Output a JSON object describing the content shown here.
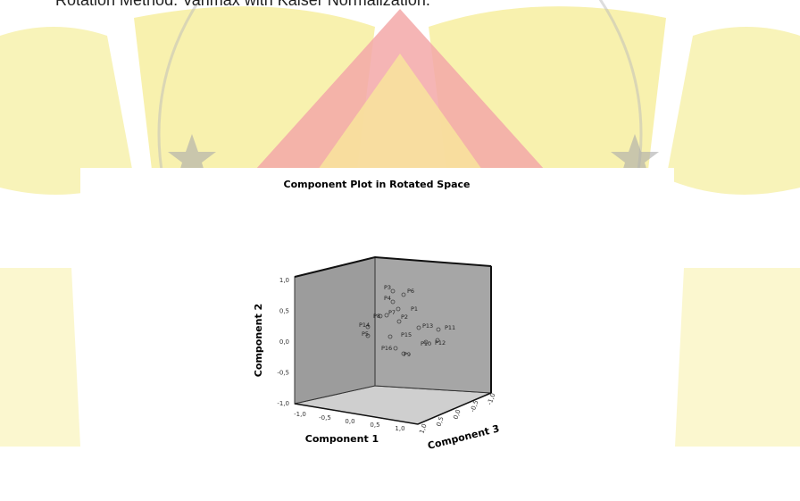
{
  "header": {
    "text": "Rotation Method: Varimax with Kaiser Normalization."
  },
  "figure": {
    "title": "Component Plot in Rotated Space",
    "axes": {
      "x": {
        "label": "Component 1",
        "ticks": [
          "-1,0",
          "-0,5",
          "0,0",
          "0,5",
          "1,0"
        ]
      },
      "y": {
        "label": "Component 2",
        "ticks": [
          "1,0",
          "0,5",
          "0,0",
          "-0,5",
          "-1,0"
        ]
      },
      "z": {
        "label": "Component 3",
        "ticks": [
          "1,0",
          "0,5",
          "0,0",
          "-0,5",
          "-1,0"
        ]
      }
    },
    "points": [
      "P3",
      "P6",
      "P4",
      "P1",
      "P8",
      "P7",
      "P2",
      "P14",
      "P13",
      "P11",
      "P5",
      "P15",
      "P10",
      "P12",
      "P16",
      "P9"
    ]
  }
}
